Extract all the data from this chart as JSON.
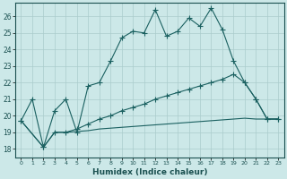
{
  "xlabel": "Humidex (Indice chaleur)",
  "bg_color": "#cce8e8",
  "grid_color": "#aacccc",
  "line_color": "#1a6060",
  "xlim": [
    -0.5,
    23.5
  ],
  "ylim": [
    17.5,
    26.8
  ],
  "xticks": [
    0,
    1,
    2,
    3,
    4,
    5,
    6,
    7,
    8,
    9,
    10,
    11,
    12,
    13,
    14,
    15,
    16,
    17,
    18,
    19,
    20,
    21,
    22,
    23
  ],
  "yticks": [
    18,
    19,
    20,
    21,
    22,
    23,
    24,
    25,
    26
  ],
  "line1_x": [
    0,
    1,
    2,
    3,
    4,
    5,
    6,
    7,
    8,
    9,
    10,
    11,
    12,
    13,
    14,
    15,
    16,
    17,
    18,
    19,
    20,
    21,
    22,
    23
  ],
  "line1_y": [
    19.7,
    21.0,
    18.1,
    20.3,
    21.0,
    19.0,
    21.8,
    22.0,
    23.3,
    24.7,
    25.1,
    25.0,
    26.4,
    24.8,
    25.1,
    25.9,
    25.4,
    26.5,
    25.2,
    23.3,
    22.0,
    21.0,
    19.8,
    19.8
  ],
  "line2_x": [
    0,
    2,
    3,
    4,
    5,
    6,
    7,
    8,
    9,
    10,
    11,
    12,
    13,
    14,
    15,
    16,
    17,
    18,
    19,
    20,
    21,
    22,
    23
  ],
  "line2_y": [
    19.7,
    18.1,
    19.0,
    19.0,
    19.2,
    19.5,
    19.8,
    20.0,
    20.3,
    20.5,
    20.7,
    21.0,
    21.2,
    21.4,
    21.6,
    21.8,
    22.0,
    22.2,
    22.5,
    22.0,
    21.0,
    19.8,
    19.8
  ],
  "line3_x": [
    0,
    2,
    3,
    4,
    5,
    6,
    7,
    8,
    9,
    10,
    11,
    12,
    13,
    14,
    15,
    16,
    17,
    18,
    19,
    20,
    21,
    22,
    23
  ],
  "line3_y": [
    19.7,
    18.1,
    19.0,
    19.0,
    19.05,
    19.1,
    19.2,
    19.25,
    19.3,
    19.35,
    19.4,
    19.45,
    19.5,
    19.55,
    19.6,
    19.65,
    19.7,
    19.75,
    19.8,
    19.85,
    19.8,
    19.8,
    19.8
  ]
}
